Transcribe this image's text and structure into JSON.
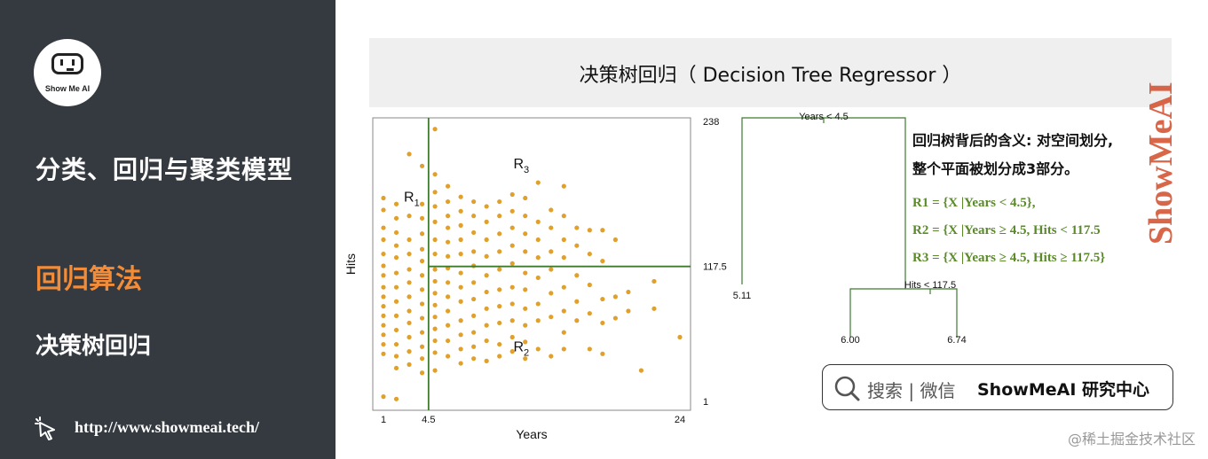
{
  "sidebar": {
    "logo_text": "Show Me AI",
    "title": "分类、回归与聚类模型",
    "active_section": "回归算法",
    "sub_section": "决策树回归",
    "link": "http://www.showmeai.tech/"
  },
  "header": {
    "title": "决策树回归（ Decision Tree Regressor ）"
  },
  "chart_data": [
    {
      "type": "scatter",
      "xlabel": "Years",
      "ylabel": "Hits",
      "x_ticks": [
        "1",
        "4.5",
        "24"
      ],
      "y_ticks": [
        "238",
        "117.5",
        "1"
      ],
      "xlim": [
        1,
        24
      ],
      "ylim": [
        1,
        238
      ],
      "split_lines": {
        "years": 4.5,
        "hits": 117.5
      },
      "regions": [
        {
          "label": "R",
          "sub": "1"
        },
        {
          "label": "R",
          "sub": "2"
        },
        {
          "label": "R",
          "sub": "3"
        }
      ],
      "point_color": "#e0a02a",
      "line_color": "#3d7a2e",
      "series": [
        {
          "points": [
            [
              1,
              175
            ],
            [
              1,
              165
            ],
            [
              1,
              150
            ],
            [
              1,
              140
            ],
            [
              1,
              128
            ],
            [
              1,
              118
            ],
            [
              1,
              110
            ],
            [
              1,
              100
            ],
            [
              1,
              92
            ],
            [
              1,
              84
            ],
            [
              1,
              76
            ],
            [
              1,
              68
            ],
            [
              1,
              60
            ],
            [
              1,
              52
            ],
            [
              1,
              44
            ],
            [
              1,
              8
            ],
            [
              2,
              170
            ],
            [
              2,
              158
            ],
            [
              2,
              146
            ],
            [
              2,
              135
            ],
            [
              2,
              125
            ],
            [
              2,
              112
            ],
            [
              2,
              100
            ],
            [
              2,
              88
            ],
            [
              2,
              76
            ],
            [
              2,
              64
            ],
            [
              2,
              52
            ],
            [
              2,
              42
            ],
            [
              2,
              32
            ],
            [
              2,
              6
            ],
            [
              3,
              212
            ],
            [
              3,
              160
            ],
            [
              3,
              140
            ],
            [
              3,
              128
            ],
            [
              3,
              115
            ],
            [
              3,
              104
            ],
            [
              3,
              92
            ],
            [
              3,
              80
            ],
            [
              3,
              70
            ],
            [
              3,
              58
            ],
            [
              3,
              46
            ],
            [
              3,
              35
            ],
            [
              4,
              202
            ],
            [
              4,
              170
            ],
            [
              4,
              158
            ],
            [
              4,
              145
            ],
            [
              4,
              132
            ],
            [
              4,
              122
            ],
            [
              4,
              110
            ],
            [
              4,
              98
            ],
            [
              4,
              86
            ],
            [
              4,
              74
            ],
            [
              4,
              62
            ],
            [
              4,
              50
            ],
            [
              4,
              40
            ],
            [
              4,
              28
            ],
            [
              5,
              233
            ],
            [
              5,
              195
            ],
            [
              5,
              180
            ],
            [
              5,
              168
            ],
            [
              5,
              155
            ],
            [
              5,
              140
            ],
            [
              5,
              128
            ],
            [
              5,
              115
            ],
            [
              5,
              105
            ],
            [
              5,
              95
            ],
            [
              5,
              85
            ],
            [
              5,
              75
            ],
            [
              5,
              65
            ],
            [
              5,
              55
            ],
            [
              5,
              45
            ],
            [
              5,
              30
            ],
            [
              6,
              185
            ],
            [
              6,
              172
            ],
            [
              6,
              160
            ],
            [
              6,
              150
            ],
            [
              6,
              138
            ],
            [
              6,
              126
            ],
            [
              6,
              116
            ],
            [
              6,
              104
            ],
            [
              6,
              92
            ],
            [
              6,
              80
            ],
            [
              6,
              68
            ],
            [
              6,
              55
            ],
            [
              6,
              42
            ],
            [
              7,
              176
            ],
            [
              7,
              164
            ],
            [
              7,
              152
            ],
            [
              7,
              140
            ],
            [
              7,
              128
            ],
            [
              7,
              112
            ],
            [
              7,
              100
            ],
            [
              7,
              88
            ],
            [
              7,
              72
            ],
            [
              7,
              60
            ],
            [
              7,
              48
            ],
            [
              7,
              36
            ],
            [
              8,
              172
            ],
            [
              8,
              160
            ],
            [
              8,
              146
            ],
            [
              8,
              130
            ],
            [
              8,
              118
            ],
            [
              8,
              104
            ],
            [
              8,
              90
            ],
            [
              8,
              76
            ],
            [
              8,
              62
            ],
            [
              8,
              50
            ],
            [
              8,
              40
            ],
            [
              9,
              168
            ],
            [
              9,
              155
            ],
            [
              9,
              140
            ],
            [
              9,
              126
            ],
            [
              9,
              110
            ],
            [
              9,
              96
            ],
            [
              9,
              82
            ],
            [
              9,
              68
            ],
            [
              9,
              55
            ],
            [
              9,
              38
            ],
            [
              10,
              172
            ],
            [
              10,
              160
            ],
            [
              10,
              145
            ],
            [
              10,
              130
            ],
            [
              10,
              115
            ],
            [
              10,
              98
            ],
            [
              10,
              84
            ],
            [
              10,
              70
            ],
            [
              10,
              52
            ],
            [
              10,
              42
            ],
            [
              11,
              178
            ],
            [
              11,
              164
            ],
            [
              11,
              150
            ],
            [
              11,
              135
            ],
            [
              11,
              120
            ],
            [
              11,
              100
            ],
            [
              11,
              86
            ],
            [
              11,
              72
            ],
            [
              11,
              58
            ],
            [
              11,
              46
            ],
            [
              12,
              175
            ],
            [
              12,
              160
            ],
            [
              12,
              145
            ],
            [
              12,
              130
            ],
            [
              12,
              112
            ],
            [
              12,
              98
            ],
            [
              12,
              82
            ],
            [
              12,
              68
            ],
            [
              12,
              54
            ],
            [
              12,
              40
            ],
            [
              13,
              188
            ],
            [
              13,
              155
            ],
            [
              13,
              140
            ],
            [
              13,
              125
            ],
            [
              13,
              108
            ],
            [
              13,
              86
            ],
            [
              13,
              72
            ],
            [
              13,
              48
            ],
            [
              14,
              165
            ],
            [
              14,
              150
            ],
            [
              14,
              130
            ],
            [
              14,
              115
            ],
            [
              14,
              95
            ],
            [
              14,
              75
            ],
            [
              14,
              42
            ],
            [
              15,
              185
            ],
            [
              15,
              160
            ],
            [
              15,
              140
            ],
            [
              15,
              125
            ],
            [
              15,
              100
            ],
            [
              15,
              80
            ],
            [
              15,
              62
            ],
            [
              15,
              48
            ],
            [
              16,
              150
            ],
            [
              16,
              135
            ],
            [
              16,
              110
            ],
            [
              16,
              88
            ],
            [
              16,
              72
            ],
            [
              17,
              148
            ],
            [
              17,
              128
            ],
            [
              17,
              102
            ],
            [
              17,
              78
            ],
            [
              17,
              48
            ],
            [
              18,
              148
            ],
            [
              18,
              122
            ],
            [
              18,
              90
            ],
            [
              18,
              70
            ],
            [
              18,
              44
            ],
            [
              19,
              140
            ],
            [
              19,
              92
            ],
            [
              19,
              74
            ],
            [
              20,
              96
            ],
            [
              20,
              80
            ],
            [
              21,
              30
            ],
            [
              22,
              105
            ],
            [
              22,
              82
            ],
            [
              24,
              58
            ]
          ]
        }
      ]
    },
    {
      "type": "tree",
      "root_label": "Years < 4.5",
      "split_label": "Hits < 117.5",
      "leaves": [
        "5.11",
        "6.00",
        "6.74"
      ],
      "line_color": "#3d7a2e"
    }
  ],
  "explanation": {
    "line1": "回归树背后的含义: 对空间划分,",
    "line2": "整个平面被划分成3部分。",
    "r1": "R1 = {X |Years < 4.5},",
    "r2": "R2 = {X |Years ≥ 4.5, Hits < 117.5",
    "r3": "R3 = {X |Years ≥ 4.5, Hits ≥ 117.5}"
  },
  "watermark": "ShowMeAI",
  "search": {
    "hint": "搜索 | 微信",
    "brand": "ShowMeAI 研究中心"
  },
  "credit": "@稀土掘金技术社区"
}
